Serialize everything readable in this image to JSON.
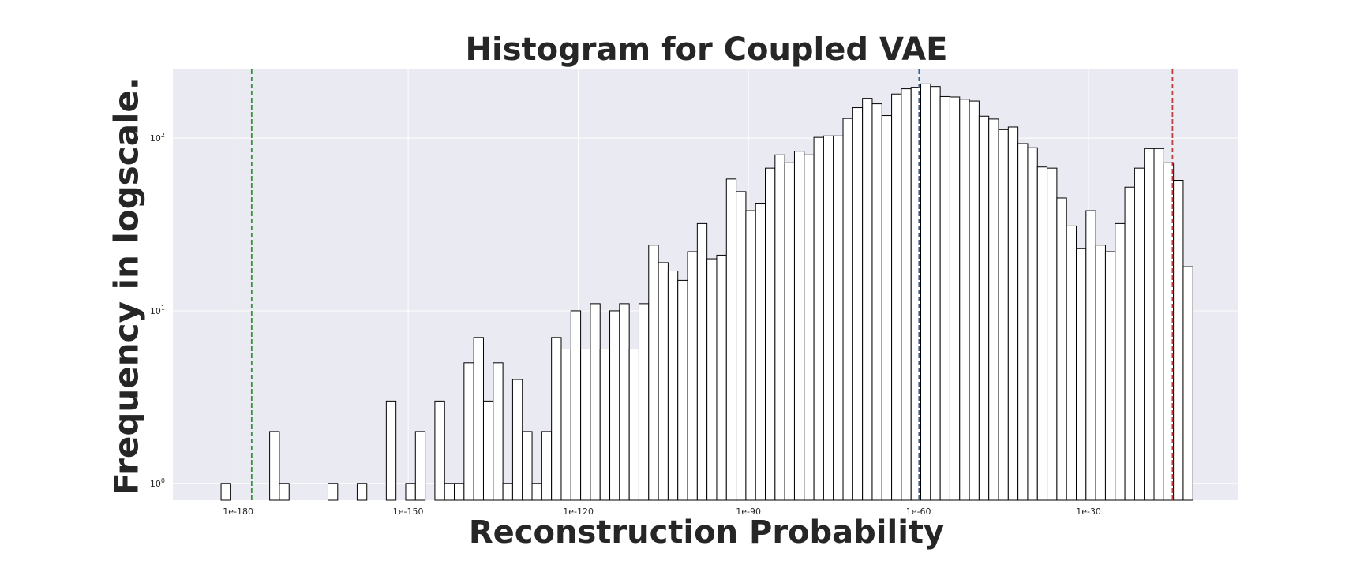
{
  "chart_data": {
    "type": "bar",
    "title": "Histogram for Coupled VAE",
    "xlabel": "Reconstruction Probability",
    "ylabel": "Frequency in logscale.",
    "xscale": "log (exponent of reconstruction probability)",
    "yscale": "log",
    "xlim": [
      -191.5,
      -3.7
    ],
    "ylim": [
      0.8,
      250
    ],
    "grid": true,
    "x_ticks": [
      {
        "value": -180,
        "label": "1e-180"
      },
      {
        "value": -150,
        "label": "1e-150"
      },
      {
        "value": -120,
        "label": "1e-120"
      },
      {
        "value": -90,
        "label": "1e-90"
      },
      {
        "value": -60,
        "label": "1e-60"
      },
      {
        "value": -30,
        "label": "1e-30"
      }
    ],
    "y_ticks": [
      {
        "value": 1,
        "base": "10",
        "exp": "0"
      },
      {
        "value": 10,
        "base": "10",
        "exp": "1"
      },
      {
        "value": 100,
        "base": "10",
        "exp": "2"
      }
    ],
    "bin_start": -183.0,
    "bin_width": 1.714,
    "values": [
      1,
      0,
      0,
      0,
      0,
      2,
      1,
      0,
      0,
      0,
      0,
      1,
      0,
      0,
      1,
      0,
      0,
      3,
      0,
      1,
      2,
      0,
      3,
      1,
      1,
      5,
      7,
      3,
      5,
      1,
      4,
      2,
      1,
      2,
      7,
      6,
      10,
      6,
      11,
      6,
      10,
      11,
      6,
      11,
      24,
      19,
      17,
      15,
      22,
      32,
      20,
      21,
      58,
      49,
      38,
      42,
      67,
      80,
      72,
      84,
      80,
      101,
      103,
      103,
      130,
      150,
      170,
      158,
      135,
      180,
      193,
      197,
      206,
      199,
      174,
      173,
      168,
      164,
      134,
      129,
      112,
      116,
      93,
      88,
      68,
      67,
      45,
      31,
      23,
      38,
      24,
      22,
      32,
      52,
      67,
      87,
      87,
      72,
      57,
      18
    ],
    "reference_lines": [
      {
        "x": -177.6,
        "color": "#3a923a",
        "style": "dashed"
      },
      {
        "x": -59.9,
        "color": "#3b5f9e",
        "style": "dashed"
      },
      {
        "x": -15.2,
        "color": "#c03d3e",
        "style": "dashed"
      }
    ],
    "colors": {
      "background": "#eaeaf2",
      "grid": "#ffffff",
      "bar_fill": "#ffffff",
      "bar_edge": "#000000",
      "text": "#262626"
    }
  }
}
